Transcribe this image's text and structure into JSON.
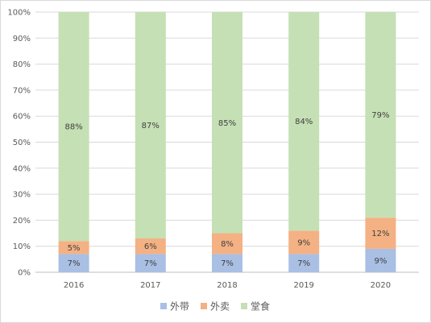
{
  "chart_data": {
    "type": "bar",
    "stacked": true,
    "percent": true,
    "categories": [
      "2016",
      "2017",
      "2018",
      "2019",
      "2020"
    ],
    "series": [
      {
        "name": "外带",
        "values": [
          7,
          7,
          7,
          7,
          9
        ],
        "labels": [
          "7%",
          "7%",
          "7%",
          "7%",
          "9%"
        ],
        "color": "#a9bfe4"
      },
      {
        "name": "外卖",
        "values": [
          5,
          6,
          8,
          9,
          12
        ],
        "labels": [
          "5%",
          "6%",
          "8%",
          "9%",
          "12%"
        ],
        "color": "#f4b183"
      },
      {
        "name": "堂食",
        "values": [
          88,
          87,
          85,
          84,
          79
        ],
        "labels": [
          "88%",
          "87%",
          "85%",
          "84%",
          "79%"
        ],
        "color": "#c5e0b4"
      }
    ],
    "ylim": [
      0,
      100
    ],
    "yticks": [
      "0%",
      "10%",
      "20%",
      "30%",
      "40%",
      "50%",
      "60%",
      "70%",
      "80%",
      "90%",
      "100%"
    ],
    "grid": true,
    "legend": "bottom",
    "title": "",
    "xlabel": "",
    "ylabel": ""
  }
}
